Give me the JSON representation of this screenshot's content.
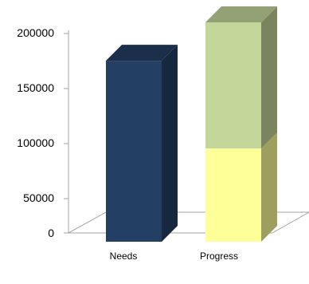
{
  "chart_data": {
    "type": "bar",
    "stacked": true,
    "three_d": true,
    "categories": [
      "Needs",
      "Progress"
    ],
    "series": [
      {
        "values": [
          165000,
          85000
        ],
        "colors": [
          "#243f64",
          "#ffff99"
        ]
      },
      {
        "values": [
          0,
          115000
        ],
        "colors": [
          "#243f64",
          "#c4d79b"
        ]
      }
    ],
    "ylim": [
      0,
      200000
    ],
    "yticks": [
      "0",
      "50000",
      "100000",
      "150000",
      "200000"
    ],
    "grid": false,
    "legend": "none"
  }
}
